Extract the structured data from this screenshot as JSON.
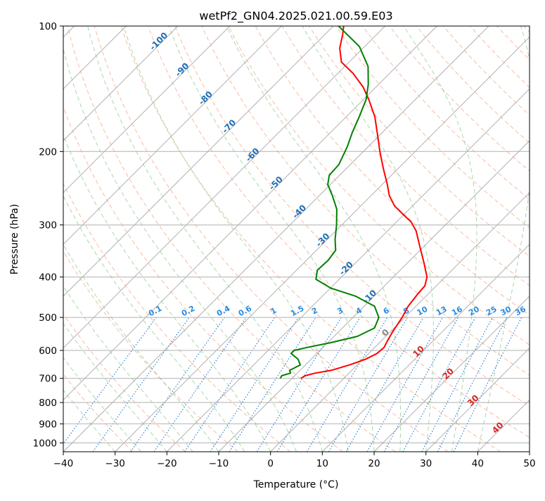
{
  "chart_data": {
    "type": "line",
    "title": "wetPf2_GN04.2025.021.00.59.E03",
    "xlabel": "Temperature (°C)",
    "ylabel": "Pressure (hPa)",
    "xlim": [
      -40,
      50
    ],
    "ylim": [
      1050,
      100
    ],
    "y_scale": "log",
    "skew": "skew-T (isotherms slanted)",
    "grid": true,
    "x_ticks": [
      -40,
      -30,
      -20,
      -10,
      0,
      10,
      20,
      30,
      40,
      50
    ],
    "x_tick_labels": [
      "−40",
      "−30",
      "−20",
      "−10",
      "0",
      "10",
      "20",
      "30",
      "40",
      "50"
    ],
    "y_ticks": [
      1000,
      900,
      800,
      700,
      600,
      500,
      400,
      300,
      200,
      100
    ],
    "y_tick_labels": [
      "1000",
      "900",
      "800",
      "700",
      "600",
      "500",
      "400",
      "300",
      "200",
      "100"
    ],
    "series": [
      {
        "role": "temperature",
        "color": "#ff0000",
        "points": [
          {
            "p": 700,
            "t": -8.3
          },
          {
            "p": 690,
            "t": -8.0
          },
          {
            "p": 680,
            "t": -6.5
          },
          {
            "p": 670,
            "t": -4.0
          },
          {
            "p": 650,
            "t": -1.5
          },
          {
            "p": 630,
            "t": 0.5
          },
          {
            "p": 610,
            "t": 1.6
          },
          {
            "p": 590,
            "t": 1.8
          },
          {
            "p": 570,
            "t": 1.2
          },
          {
            "p": 540,
            "t": 0.4
          },
          {
            "p": 500,
            "t": -0.5
          },
          {
            "p": 470,
            "t": -1.5
          },
          {
            "p": 440,
            "t": -2.0
          },
          {
            "p": 420,
            "t": -2.2
          },
          {
            "p": 400,
            "t": -3.5
          },
          {
            "p": 370,
            "t": -6.8
          },
          {
            "p": 340,
            "t": -10.5
          },
          {
            "p": 310,
            "t": -14.5
          },
          {
            "p": 295,
            "t": -17.2
          },
          {
            "p": 285,
            "t": -19.7
          },
          {
            "p": 270,
            "t": -23.5
          },
          {
            "p": 255,
            "t": -26.5
          },
          {
            "p": 240,
            "t": -29.0
          },
          {
            "p": 220,
            "t": -32.8
          },
          {
            "p": 200,
            "t": -36.8
          },
          {
            "p": 180,
            "t": -41.0
          },
          {
            "p": 165,
            "t": -44.5
          },
          {
            "p": 150,
            "t": -49.0
          },
          {
            "p": 140,
            "t": -52.5
          },
          {
            "p": 130,
            "t": -57.0
          },
          {
            "p": 122,
            "t": -61.5
          },
          {
            "p": 113,
            "t": -64.5
          },
          {
            "p": 105,
            "t": -66.5
          },
          {
            "p": 100,
            "t": -68.0
          }
        ]
      },
      {
        "role": "dewpoint",
        "color": "#008000",
        "points": [
          {
            "p": 700,
            "t": -12.3
          },
          {
            "p": 690,
            "t": -12.5
          },
          {
            "p": 680,
            "t": -11.3
          },
          {
            "p": 670,
            "t": -12.0
          },
          {
            "p": 650,
            "t": -11.0
          },
          {
            "p": 630,
            "t": -12.5
          },
          {
            "p": 610,
            "t": -15.0
          },
          {
            "p": 600,
            "t": -15.0
          },
          {
            "p": 590,
            "t": -13.0
          },
          {
            "p": 575,
            "t": -9.5
          },
          {
            "p": 555,
            "t": -5.5
          },
          {
            "p": 530,
            "t": -3.8
          },
          {
            "p": 500,
            "t": -5.0
          },
          {
            "p": 470,
            "t": -8.0
          },
          {
            "p": 445,
            "t": -13.5
          },
          {
            "p": 425,
            "t": -20.0
          },
          {
            "p": 405,
            "t": -24.5
          },
          {
            "p": 385,
            "t": -26.0
          },
          {
            "p": 365,
            "t": -25.8
          },
          {
            "p": 345,
            "t": -26.3
          },
          {
            "p": 325,
            "t": -28.5
          },
          {
            "p": 300,
            "t": -31.0
          },
          {
            "p": 275,
            "t": -34.0
          },
          {
            "p": 255,
            "t": -37.5
          },
          {
            "p": 240,
            "t": -40.5
          },
          {
            "p": 228,
            "t": -42.0
          },
          {
            "p": 215,
            "t": -42.2
          },
          {
            "p": 195,
            "t": -44.0
          },
          {
            "p": 180,
            "t": -45.8
          },
          {
            "p": 165,
            "t": -47.5
          },
          {
            "p": 150,
            "t": -49.5
          },
          {
            "p": 138,
            "t": -52.0
          },
          {
            "p": 125,
            "t": -55.5
          },
          {
            "p": 112,
            "t": -61.0
          },
          {
            "p": 100,
            "t": -69.0
          }
        ]
      }
    ],
    "background": {
      "isotherms": true,
      "dry_adiabats": true,
      "moist_adiabats": true,
      "mixing_ratio_lines": true,
      "isotherm_labels_blue": [
        "-100",
        "-90",
        "-80",
        "-70",
        "-60",
        "-50",
        "-40",
        "-30",
        "-20",
        "-10"
      ],
      "mixing_ratio_labels": [
        "0.1",
        "0.2",
        "0.4",
        "0.6",
        "1",
        "1.5",
        "2",
        "3",
        "4",
        "6",
        "8",
        "10",
        "13",
        "16",
        "20",
        "25",
        "30",
        "36"
      ],
      "isotherm_labels_warm": [
        "0",
        "10",
        "20",
        "30",
        "40"
      ]
    },
    "colors": {
      "temperature": "#ff0000",
      "dewpoint": "#008000",
      "isotherm_grid": "#b0b0b0",
      "dry_adiabat": "#f4a582",
      "moist_adiabat": "#8fc98f",
      "mixing_ratio": "#1f77d4",
      "blue_label": "#1f6fb4",
      "red_label": "#d62728",
      "gray_label": "#888888"
    }
  }
}
